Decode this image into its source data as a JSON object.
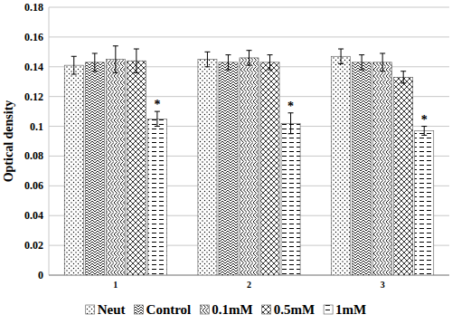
{
  "chart_data": {
    "type": "bar",
    "y_label": "Optical density",
    "categories": [
      "1",
      "2",
      "3"
    ],
    "series": [
      {
        "name": "Neut",
        "color": "#000000",
        "values": [
          0.141,
          0.145,
          0.147
        ],
        "errors": [
          0.006,
          0.005,
          0.005
        ]
      },
      {
        "name": "Control",
        "color": "#000000",
        "values": [
          0.143,
          0.143,
          0.143
        ],
        "errors": [
          0.006,
          0.005,
          0.005
        ]
      },
      {
        "name": "0.1mM",
        "color": "#000000",
        "values": [
          0.145,
          0.146,
          0.143
        ],
        "errors": [
          0.009,
          0.005,
          0.006
        ]
      },
      {
        "name": "0.5mM",
        "color": "#000000",
        "values": [
          0.144,
          0.143,
          0.133
        ],
        "errors": [
          0.008,
          0.005,
          0.004
        ]
      },
      {
        "name": "1mM",
        "color": "#000000",
        "values": [
          0.105,
          0.102,
          0.097
        ],
        "errors": [
          0.005,
          0.007,
          0.003
        ],
        "annotations": [
          "*",
          "*",
          "*"
        ]
      }
    ],
    "ylim": [
      0,
      0.18
    ],
    "yticks": [
      0,
      0.02,
      0.04,
      0.06,
      0.08,
      0.1,
      0.12,
      0.14,
      0.16,
      0.18
    ],
    "grid": true,
    "legend": "bottom"
  }
}
